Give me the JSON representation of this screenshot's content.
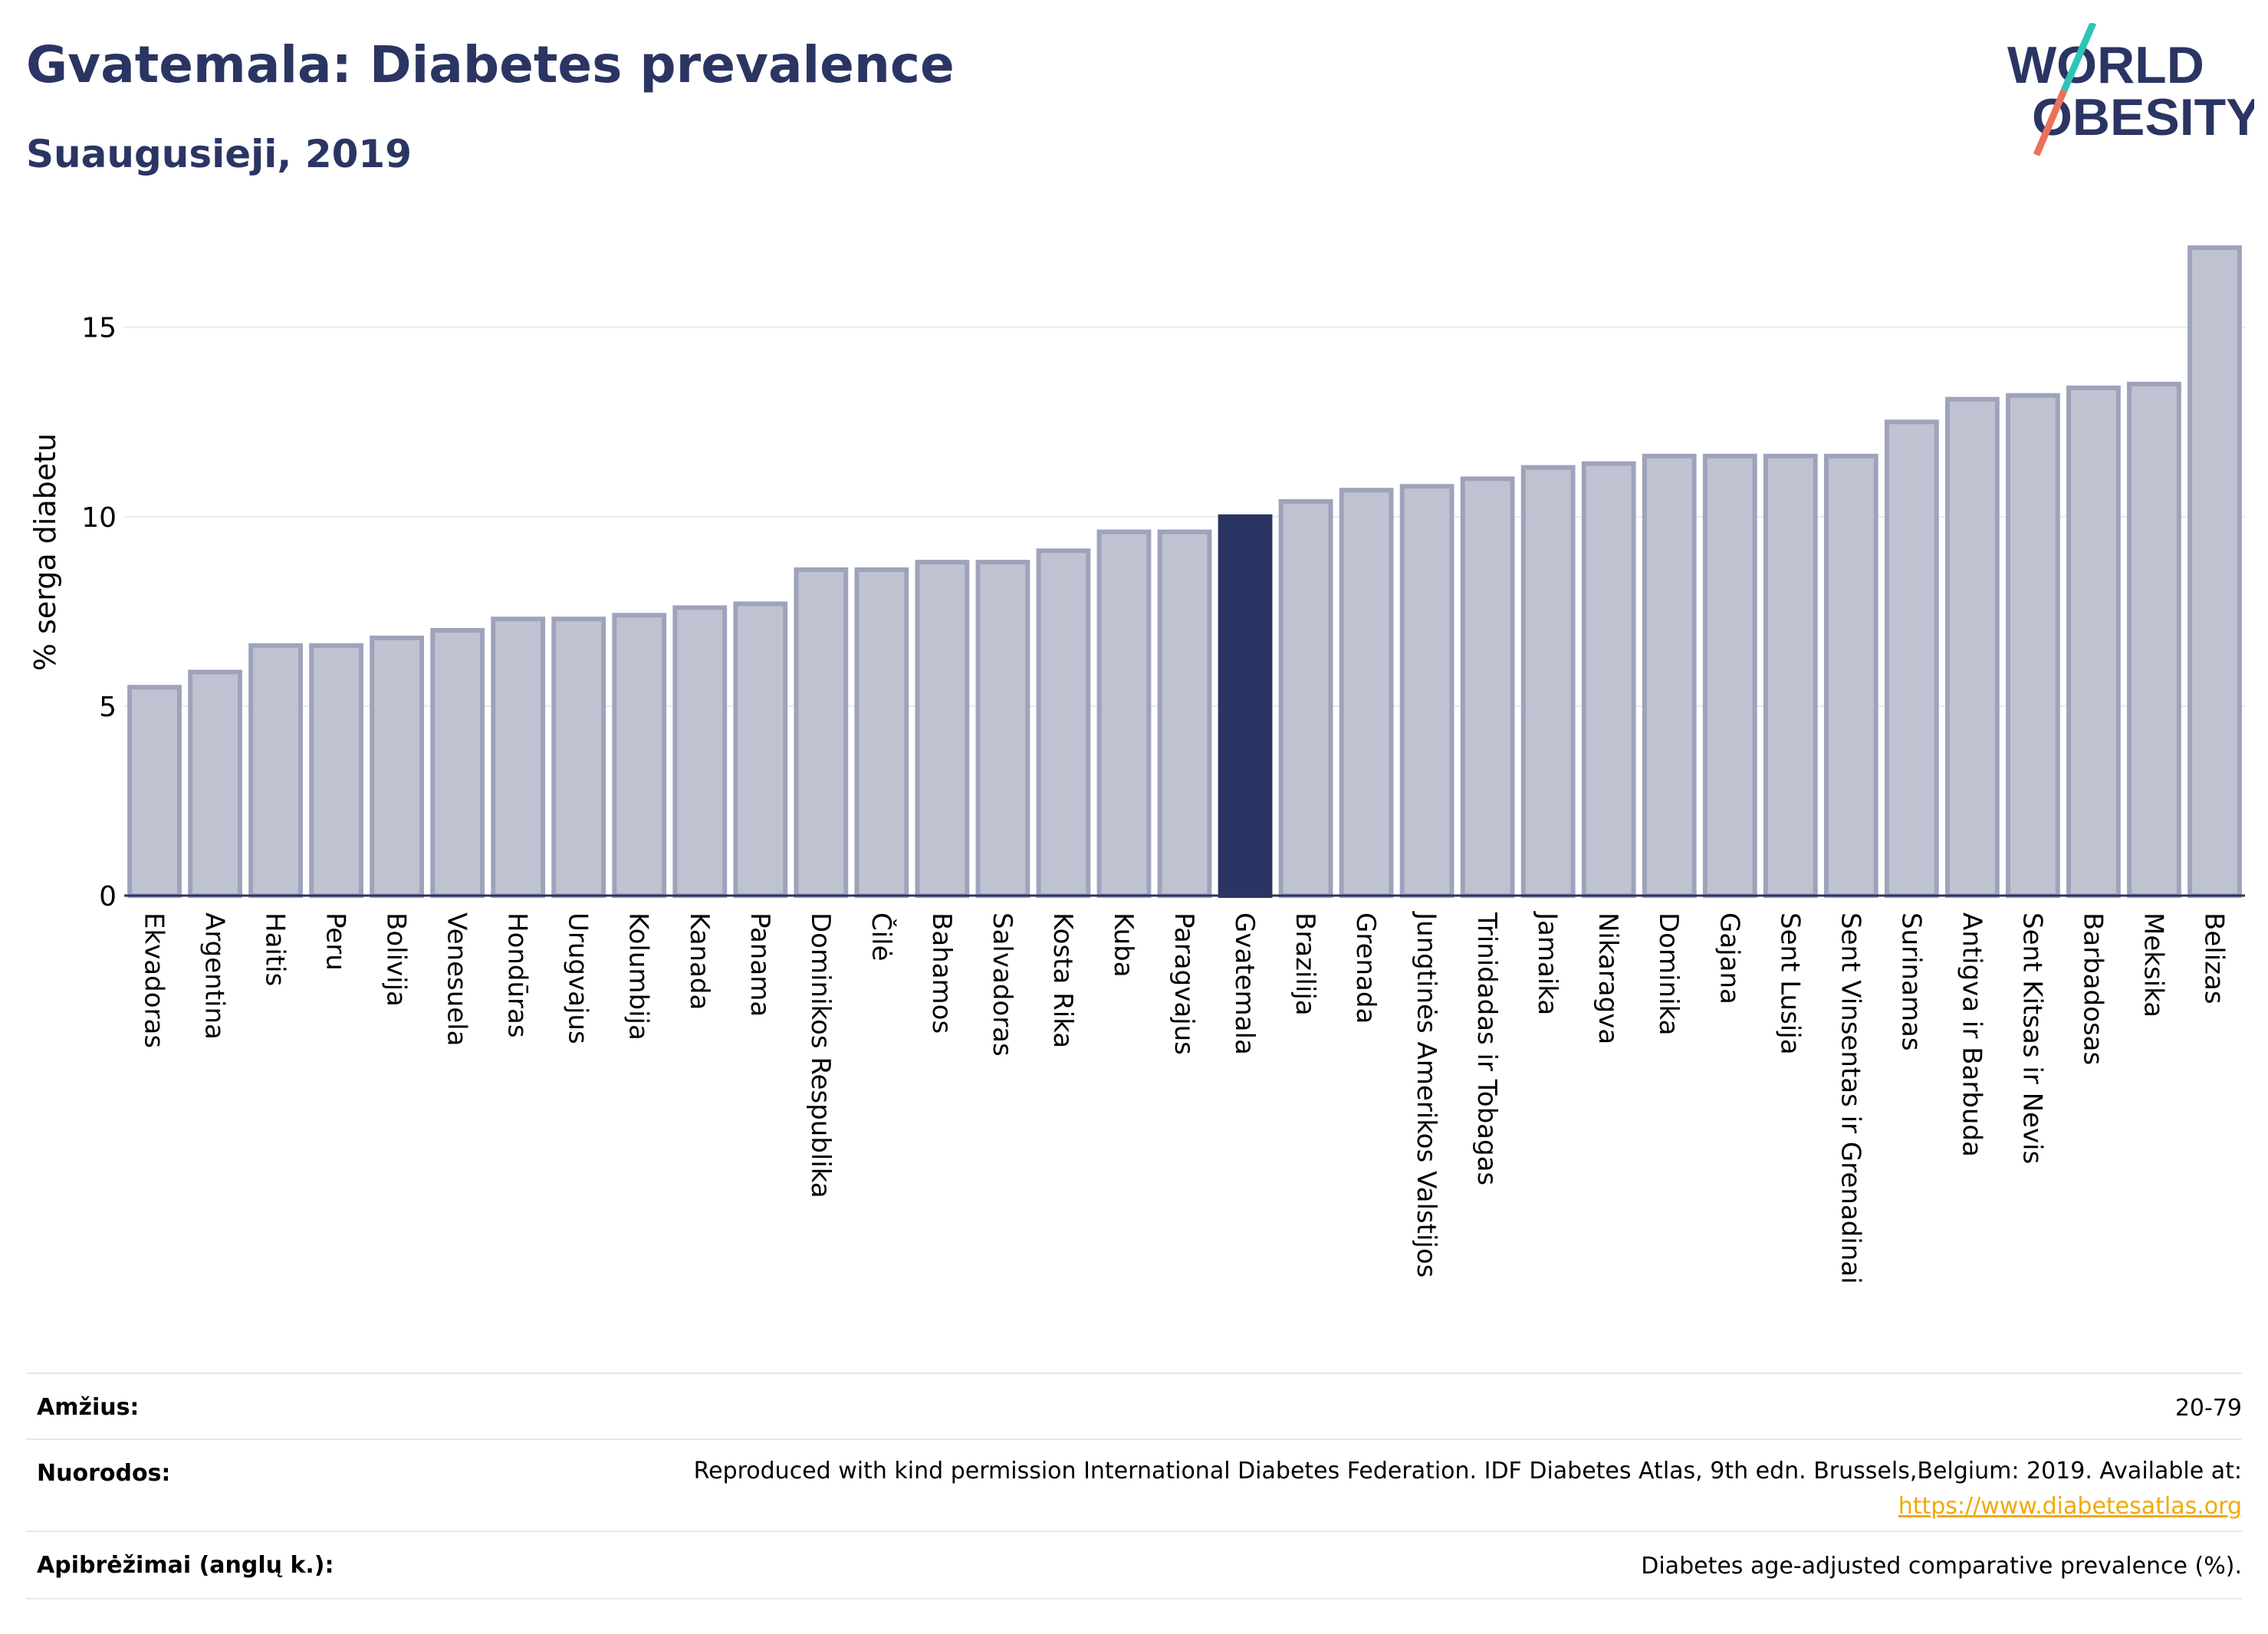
{
  "header": {
    "title": "Gvatemala: Diabetes prevalence",
    "subtitle": "Suaugusieji, 2019"
  },
  "logo": {
    "line1": "WORLD",
    "line2": "OBESITY",
    "colors": {
      "text": "#2b3563",
      "slash_top": "#2ec4b6",
      "slash_bottom": "#e8735a"
    }
  },
  "colors": {
    "bar_default": "#bfc3d1",
    "bar_default_border": "#9ea3bb",
    "bar_highlight": "#2b3563",
    "grid": "#e8eaf1",
    "axis": "#2b3563"
  },
  "chart_data": {
    "type": "bar",
    "ylabel": "% serga diabetu",
    "ylim": [
      0,
      17.2
    ],
    "yticks": [
      0,
      5,
      10,
      15
    ],
    "grid": true,
    "highlight": "Gvatemala",
    "categories": [
      "Ekvadoras",
      "Argentina",
      "Haitis",
      "Peru",
      "Bolivija",
      "Venesuela",
      "Hondūras",
      "Urugvajus",
      "Kolumbija",
      "Kanada",
      "Panama",
      "Dominikos Respublika",
      "Čilė",
      "Bahamos",
      "Salvadoras",
      "Kosta Rika",
      "Kuba",
      "Paragvajus",
      "Gvatemala",
      "Brazilija",
      "Grenada",
      "Jungtinės Amerikos Valstijos",
      "Trinidadas ir Tobagas",
      "Jamaika",
      "Nikaragva",
      "Dominika",
      "Gajana",
      "Sent Lusija",
      "Sent Vinsentas ir Grenadinai",
      "Surinamas",
      "Antigva ir Barbuda",
      "Sent Kitsas ir Nevis",
      "Barbadosas",
      "Meksika",
      "Belizas"
    ],
    "values": [
      5.5,
      5.9,
      6.6,
      6.6,
      6.8,
      7.0,
      7.3,
      7.3,
      7.4,
      7.6,
      7.7,
      8.6,
      8.6,
      8.8,
      8.8,
      9.1,
      9.6,
      9.6,
      10.0,
      10.4,
      10.7,
      10.8,
      11.0,
      11.3,
      11.4,
      11.6,
      11.6,
      11.6,
      11.6,
      12.5,
      13.1,
      13.2,
      13.4,
      13.5,
      17.1
    ]
  },
  "info": {
    "age_label": "Amžius:",
    "age_value": "20-79",
    "refs_label": "Nuorodos:",
    "refs_text": "Reproduced with kind permission International Diabetes Federation. IDF Diabetes Atlas, 9th edn. Brussels,Belgium: 2019. Available at:",
    "refs_link": "https://www.diabetesatlas.org",
    "defs_label": "Apibrėžimai (anglų k.):",
    "defs_value": "Diabetes age-adjusted comparative prevalence (%)."
  }
}
